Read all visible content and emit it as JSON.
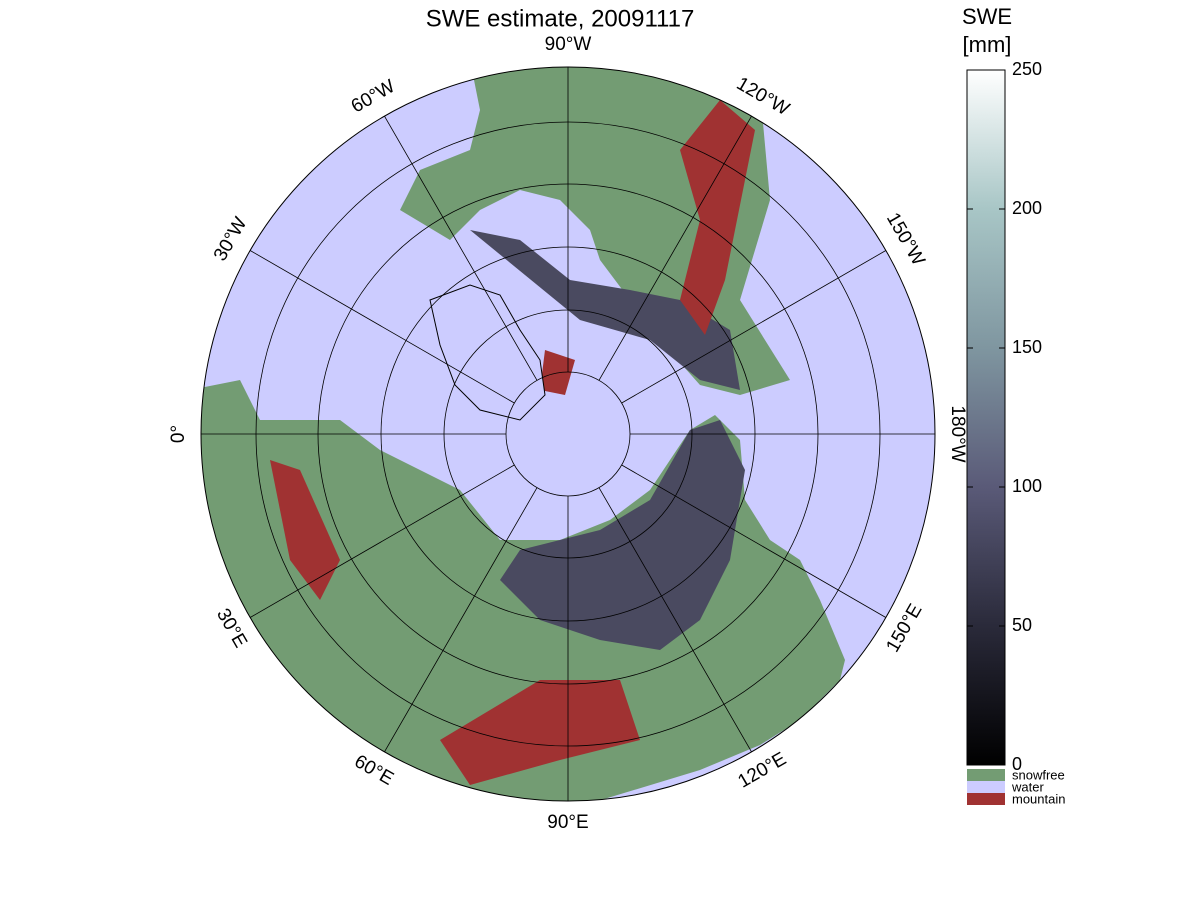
{
  "title": "SWE estimate, 20091117",
  "map": {
    "meridians": [
      {
        "value": -90,
        "label": "90°W"
      },
      {
        "value": -60,
        "label": "60°W"
      },
      {
        "value": -30,
        "label": "30°W"
      },
      {
        "value": 0,
        "label": "0°"
      },
      {
        "value": 30,
        "label": "30°E"
      },
      {
        "value": 60,
        "label": "60°E"
      },
      {
        "value": 90,
        "label": "90°E"
      },
      {
        "value": 120,
        "label": "120°E"
      },
      {
        "value": 150,
        "label": "150°E"
      },
      {
        "value": 180,
        "label": "180°W"
      },
      {
        "value": -150,
        "label": "150°W"
      },
      {
        "value": -120,
        "label": "120°W"
      }
    ]
  },
  "colorbar": {
    "label": [
      "SWE",
      "[mm]"
    ],
    "lim": [
      0,
      250
    ],
    "ticks": [
      0,
      50,
      100,
      150,
      200,
      250
    ]
  },
  "legend": [
    {
      "label": "snowfree",
      "color": "#739c73"
    },
    {
      "label": "water",
      "color": "#ccccff"
    },
    {
      "label": "mountain",
      "color": "#a03232"
    }
  ]
}
